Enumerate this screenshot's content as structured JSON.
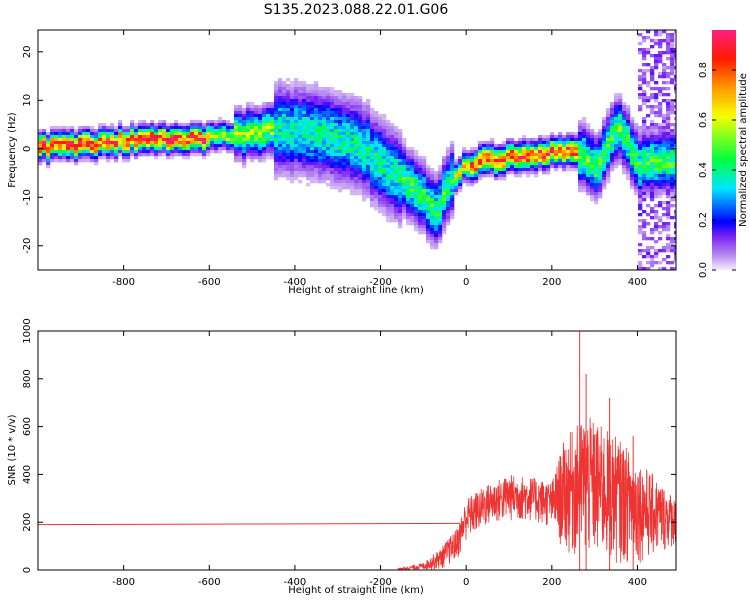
{
  "title": "S135.2023.088.22.01.G06",
  "chart_data": [
    {
      "type": "heatmap",
      "xlabel": "Height of straight line (km)",
      "ylabel": "Frequency (Hz)",
      "xlim": [
        -1000,
        490
      ],
      "ylim": [
        -25,
        24.5
      ],
      "x_ticks": [
        -800,
        -600,
        -400,
        -200,
        0,
        200,
        400
      ],
      "y_ticks": [
        -20,
        -10,
        0,
        10,
        20
      ],
      "colorbar": {
        "label": "Normalized spectral amplitude",
        "range": [
          0.0,
          0.96
        ],
        "ticks": [
          0.0,
          0.2,
          0.4,
          0.6,
          0.8
        ]
      },
      "ridge_trace": [
        {
          "x": -1000,
          "y": 0.5
        },
        {
          "x": -900,
          "y": 1.0
        },
        {
          "x": -800,
          "y": 2.0
        },
        {
          "x": -700,
          "y": 2.3
        },
        {
          "x": -600,
          "y": 2.5
        },
        {
          "x": -500,
          "y": 3.5
        },
        {
          "x": -450,
          "y": 4.5
        },
        {
          "x": -400,
          "y": 4.0
        },
        {
          "x": -350,
          "y": 3.5
        },
        {
          "x": -300,
          "y": 2.5
        },
        {
          "x": -250,
          "y": 1.0
        },
        {
          "x": -200,
          "y": -3.0
        },
        {
          "x": -150,
          "y": -6.0
        },
        {
          "x": -100,
          "y": -10.0
        },
        {
          "x": -75,
          "y": -13.0
        },
        {
          "x": -50,
          "y": -8.0
        },
        {
          "x": -25,
          "y": -5.0
        },
        {
          "x": 0,
          "y": -3.0
        },
        {
          "x": 50,
          "y": -2.0
        },
        {
          "x": 100,
          "y": -1.5
        },
        {
          "x": 150,
          "y": -1.0
        },
        {
          "x": 200,
          "y": -0.5
        },
        {
          "x": 250,
          "y": 0.0
        },
        {
          "x": 300,
          "y": -4.0
        },
        {
          "x": 350,
          "y": 5.0
        },
        {
          "x": 400,
          "y": -3.0
        },
        {
          "x": 450,
          "y": -2.0
        }
      ]
    },
    {
      "type": "line",
      "xlabel": "Height of straight line (km)",
      "ylabel": "SNR (10 * v/v)",
      "xlim": [
        -1000,
        490
      ],
      "ylim": [
        0,
        1000
      ],
      "x_ticks": [
        -800,
        -600,
        -400,
        -200,
        0,
        200,
        400
      ],
      "y_ticks": [
        0,
        200,
        400,
        600,
        800,
        1000
      ],
      "color": "#ee3333",
      "series": [
        {
          "segments": [
            {
              "x": -1000,
              "y": 190
            },
            {
              "x": -15,
              "y": 195
            }
          ],
          "noisy_envelope": [
            {
              "x": -160,
              "low": 0,
              "high": 5
            },
            {
              "x": -100,
              "low": 0,
              "high": 30
            },
            {
              "x": -60,
              "low": 0,
              "high": 90
            },
            {
              "x": -20,
              "low": 40,
              "high": 180
            },
            {
              "x": 0,
              "low": 120,
              "high": 300
            },
            {
              "x": 50,
              "low": 180,
              "high": 360
            },
            {
              "x": 100,
              "low": 200,
              "high": 400
            },
            {
              "x": 150,
              "low": 200,
              "high": 390
            },
            {
              "x": 200,
              "low": 170,
              "high": 370
            },
            {
              "x": 230,
              "low": 60,
              "high": 550
            },
            {
              "x": 280,
              "low": 30,
              "high": 650
            },
            {
              "x": 350,
              "low": 20,
              "high": 560
            },
            {
              "x": 420,
              "low": 30,
              "high": 430
            },
            {
              "x": 490,
              "low": 100,
              "high": 300
            }
          ],
          "peaks": [
            {
              "x": 265,
              "y": 1000
            },
            {
              "x": 280,
              "y": 820
            },
            {
              "x": 335,
              "y": 720
            },
            {
              "x": 390,
              "y": 560
            }
          ]
        }
      ]
    }
  ]
}
